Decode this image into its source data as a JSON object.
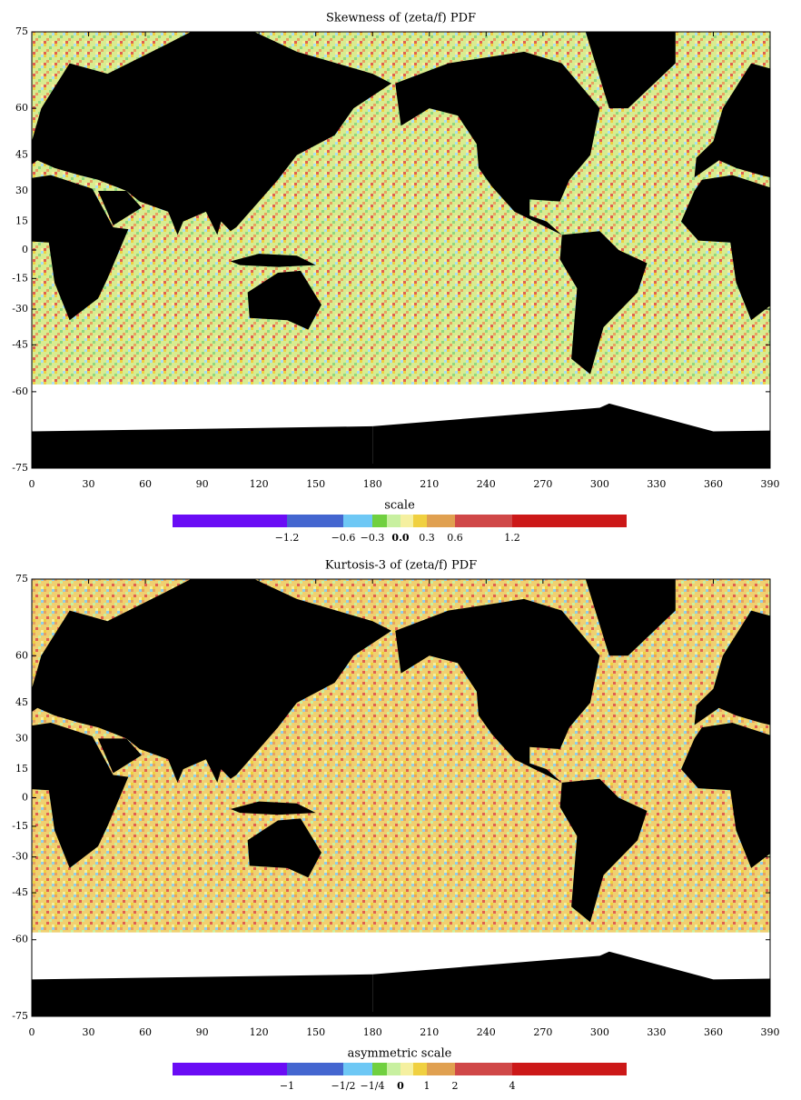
{
  "panels": [
    {
      "title": "Skewness of (zeta/f) PDF",
      "xlim": [
        0,
        390
      ],
      "xticks": [
        0,
        30,
        60,
        90,
        120,
        150,
        180,
        210,
        240,
        270,
        300,
        330,
        360,
        390
      ],
      "ylim": [
        -75,
        75
      ],
      "yticks": [
        75,
        60,
        45,
        30,
        15,
        0,
        -15,
        -30,
        -45,
        -60,
        -75
      ],
      "colorbar": {
        "label": "scale",
        "colors": [
          "#6a0cf5",
          "#4466d0",
          "#6ec8f5",
          "#70d040",
          "#c8f0a0",
          "#f5f0a0",
          "#f0d040",
          "#e0a050",
          "#d04848",
          "#cc1818"
        ],
        "bounds": [
          -2.4,
          -1.2,
          -0.6,
          -0.3,
          -0.15,
          0,
          0.15,
          0.3,
          0.6,
          1.2,
          2.4
        ],
        "ticks": [
          {
            "value": -1.2,
            "label": "−1.2"
          },
          {
            "value": -0.6,
            "label": "−0.6"
          },
          {
            "value": -0.3,
            "label": "−0.3"
          },
          {
            "value": 0,
            "label": "0.0"
          },
          0.3,
          0.6,
          1.2
        ]
      }
    },
    {
      "title": "Kurtosis-3 of (zeta/f) PDF",
      "xlim": [
        0,
        390
      ],
      "xticks": [
        0,
        30,
        60,
        90,
        120,
        150,
        180,
        210,
        240,
        270,
        300,
        330,
        360,
        390
      ],
      "ylim": [
        -75,
        75
      ],
      "yticks": [
        75,
        60,
        45,
        30,
        15,
        0,
        -15,
        -30,
        -45,
        -60,
        -75
      ],
      "colorbar": {
        "label": "asymmetric scale",
        "colors": [
          "#6a0cf5",
          "#4466d0",
          "#6ec8f5",
          "#70d040",
          "#c8f0a0",
          "#f5f0a0",
          "#f0d040",
          "#e0a050",
          "#d04848",
          "#cc1818"
        ],
        "bounds": [
          -2,
          -1,
          -0.5,
          -0.25,
          -0.125,
          0,
          0.5,
          1,
          2,
          4,
          8
        ],
        "ticks": [
          {
            "value": -1,
            "label": "−1"
          },
          {
            "value": -0.5,
            "label": "−1/2"
          },
          {
            "value": -0.25,
            "label": "−1/4"
          },
          0,
          1,
          2,
          4
        ]
      }
    }
  ]
}
